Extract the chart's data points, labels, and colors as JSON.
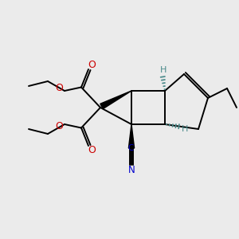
{
  "bg_color": "#ebebeb",
  "figsize": [
    3.0,
    3.0
  ],
  "dpi": 100,
  "bond_color": "#000000",
  "o_color": "#cc0000",
  "n_color": "#0000cc",
  "h_color": "#4a8a8a",
  "lw": 1.4,
  "xlim": [
    0,
    10
  ],
  "ylim": [
    0,
    10
  ]
}
